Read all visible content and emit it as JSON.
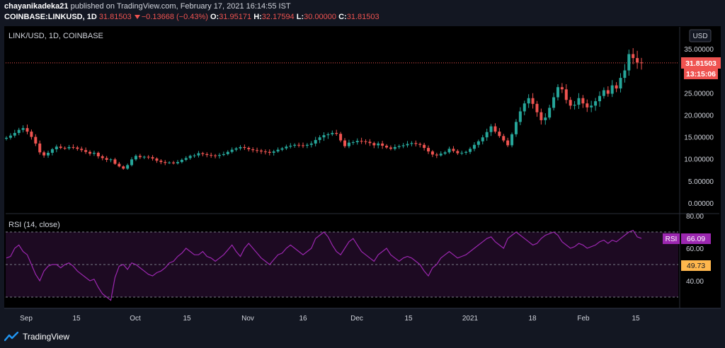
{
  "header": {
    "author": "chayanikadeka21",
    "published_text": "published on TradingView.com, February 17, 2021 16:14:55 IST",
    "symbol": "COINBASE:LINKUSD, 1D",
    "last": "31.81503",
    "change": "−0.13668 (−0.43%)",
    "o_label": "O:",
    "o_value": "31.95171",
    "h_label": "H:",
    "h_value": "32.17594",
    "l_label": "L:",
    "l_value": "30.00000",
    "c_label": "C:",
    "c_value": "31.81503"
  },
  "pane_label": "LINK/USD, 1D, COINBASE",
  "currency_button": "USD",
  "price_badge": "31.81503",
  "countdown_badge": "13:15:06",
  "rsi_label": "RSI (14, close)",
  "rsi_badge_name": "RSI",
  "rsi_badge_value": "66.09",
  "rsi_ma_badge": "49.73",
  "brand": "TradingView",
  "colors": {
    "up": "#26a69a",
    "down": "#ef5350",
    "rsi": "#9c27b0",
    "rsi_fill": "#1d0a22",
    "bg": "#000000"
  },
  "chart_data": {
    "type": "candlestick",
    "price_axis_ticks": [
      "35.00000",
      "30.00000",
      "25.00000",
      "20.00000",
      "15.00000",
      "10.00000",
      "5.00000",
      "0.00000"
    ],
    "price_range": [
      0,
      36
    ],
    "rsi_axis_ticks": [
      "80.00",
      "60.00",
      "40.00"
    ],
    "rsi_range": [
      26,
      80
    ],
    "rsi_bands": [
      70,
      50,
      30
    ],
    "x_tick_labels": [
      "Sep",
      "15",
      "Oct",
      "15",
      "Nov",
      "16",
      "Dec",
      "15",
      "2021",
      "18",
      "Feb",
      "15"
    ],
    "closes": [
      14.8,
      15.3,
      15.9,
      16.6,
      17.0,
      16.2,
      15.0,
      13.5,
      11.5,
      10.8,
      11.4,
      12.2,
      12.8,
      12.5,
      12.4,
      12.7,
      12.6,
      12.3,
      12.0,
      11.6,
      11.2,
      11.4,
      10.6,
      10.2,
      9.8,
      9.9,
      8.9,
      8.3,
      7.8,
      8.6,
      9.9,
      10.7,
      10.4,
      10.5,
      10.4,
      10.1,
      9.6,
      9.3,
      9.1,
      9.2,
      9.0,
      9.3,
      9.8,
      10.2,
      10.7,
      10.8,
      11.3,
      11.1,
      10.9,
      10.8,
      10.7,
      10.9,
      11.1,
      11.6,
      12.1,
      12.4,
      12.7,
      12.5,
      12.2,
      12.0,
      11.9,
      11.7,
      11.6,
      11.4,
      11.7,
      12.1,
      12.4,
      12.8,
      13.0,
      13.2,
      13.1,
      13.0,
      13.2,
      13.5,
      14.3,
      14.9,
      15.4,
      15.6,
      15.9,
      15.7,
      14.2,
      12.9,
      13.7,
      13.8,
      14.1,
      14.0,
      13.9,
      13.6,
      13.1,
      13.5,
      13.0,
      12.6,
      12.3,
      12.7,
      12.9,
      13.1,
      13.4,
      13.6,
      13.4,
      13.2,
      12.5,
      11.7,
      11.0,
      10.8,
      11.2,
      11.5,
      12.3,
      11.8,
      11.3,
      11.4,
      11.6,
      12.3,
      13.2,
      14.0,
      14.9,
      16.1,
      17.4,
      16.2,
      15.2,
      14.2,
      13.1,
      15.6,
      18.4,
      20.8,
      22.6,
      23.8,
      22.5,
      20.6,
      18.8,
      19.4,
      21.6,
      24.0,
      26.3,
      25.8,
      23.4,
      22.1,
      22.3,
      23.8,
      22.6,
      21.7,
      22.1,
      23.1,
      24.3,
      25.6,
      24.8,
      26.7,
      26.0,
      28.4,
      30.1,
      33.8,
      32.9,
      31.9,
      31.8
    ],
    "rsi": [
      54,
      55,
      60,
      62,
      58,
      56,
      50,
      44,
      40,
      46,
      49,
      50,
      50,
      48,
      50,
      51,
      49,
      46,
      44,
      42,
      40,
      41,
      36,
      32,
      30,
      28,
      42,
      49,
      50,
      47,
      51,
      50,
      48,
      46,
      44,
      43,
      45,
      46,
      48,
      51,
      52,
      55,
      57,
      60,
      58,
      56,
      56,
      58,
      55,
      54,
      52,
      54,
      56,
      59,
      62,
      58,
      55,
      60,
      63,
      60,
      57,
      54,
      52,
      50,
      53,
      56,
      57,
      60,
      62,
      60,
      58,
      56,
      58,
      60,
      66,
      68,
      70,
      67,
      62,
      58,
      56,
      60,
      64,
      66,
      62,
      58,
      56,
      54,
      52,
      56,
      58,
      60,
      56,
      54,
      52,
      54,
      55,
      54,
      52,
      50,
      46,
      43,
      48,
      50,
      54,
      56,
      58,
      56,
      54,
      55,
      56,
      58,
      60,
      62,
      64,
      66,
      67,
      64,
      62,
      60,
      66,
      68,
      70,
      68,
      66,
      64,
      62,
      63,
      66,
      68,
      69,
      70,
      68,
      64,
      62,
      60,
      61,
      63,
      62,
      60,
      61,
      62,
      64,
      65,
      63,
      65,
      64,
      66,
      68,
      70,
      71,
      67,
      66.09
    ]
  }
}
